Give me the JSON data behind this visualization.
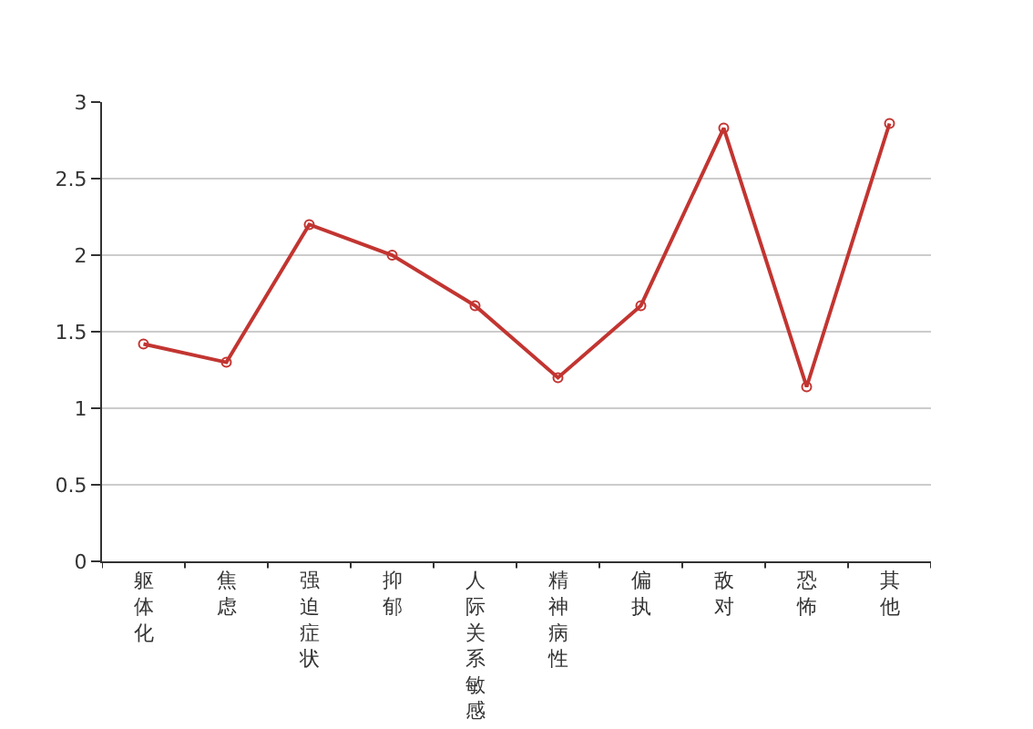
{
  "chart_data": {
    "type": "line",
    "categories": [
      "躯体化",
      "焦虑",
      "强迫症状",
      "抑郁",
      "人际关系敏感",
      "精神病性",
      "偏执",
      "敌对",
      "恐怖",
      "其他"
    ],
    "series": [
      {
        "color": "#c23531",
        "values": [
          1.42,
          1.3,
          2.2,
          2.0,
          1.67,
          1.2,
          1.67,
          2.83,
          1.14,
          2.86
        ]
      }
    ],
    "ylim": [
      0,
      3
    ],
    "yticks": [
      0,
      0.5,
      1,
      1.5,
      2,
      2.5,
      3
    ],
    "grid": "y",
    "marker": "circle",
    "line_style": "solid"
  }
}
